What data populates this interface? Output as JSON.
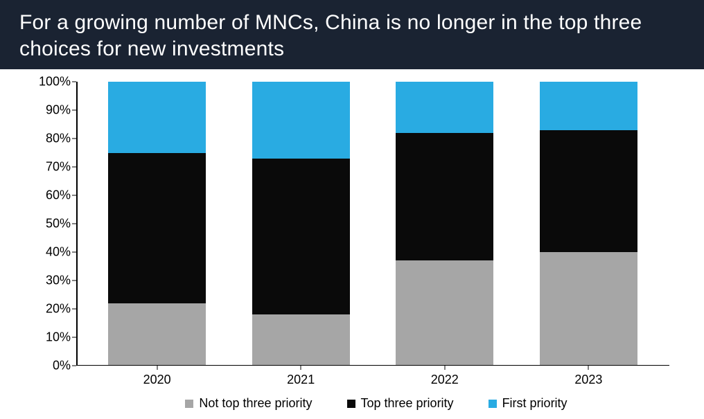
{
  "header": {
    "title": "For a growing number of MNCs, China is no longer in the top three choices for new investments"
  },
  "chart": {
    "type": "stacked-bar",
    "background_color": "#ffffff",
    "header_bg": "#1a2332",
    "header_text_color": "#ffffff",
    "axis_color": "#000000",
    "label_color": "#000000",
    "title_fontsize": 30,
    "axis_fontsize": 18,
    "legend_fontsize": 18,
    "ylim": [
      0,
      100
    ],
    "ytick_step": 10,
    "y_suffix": "%",
    "y_ticks": [
      "0%",
      "10%",
      "20%",
      "30%",
      "40%",
      "50%",
      "60%",
      "70%",
      "80%",
      "90%",
      "100%"
    ],
    "categories": [
      "2020",
      "2021",
      "2022",
      "2023"
    ],
    "series_order": [
      "not_top_three",
      "top_three",
      "first"
    ],
    "series": {
      "not_top_three": {
        "label": "Not top three priority",
        "color": "#a6a6a6",
        "values": [
          22,
          18,
          37,
          40
        ]
      },
      "top_three": {
        "label": "Top three priority",
        "color": "#0a0a0a",
        "values": [
          53,
          55,
          45,
          43
        ]
      },
      "first": {
        "label": "First priority",
        "color": "#29abe2",
        "values": [
          25,
          27,
          18,
          17
        ]
      }
    },
    "bar_width_pct": 17
  }
}
